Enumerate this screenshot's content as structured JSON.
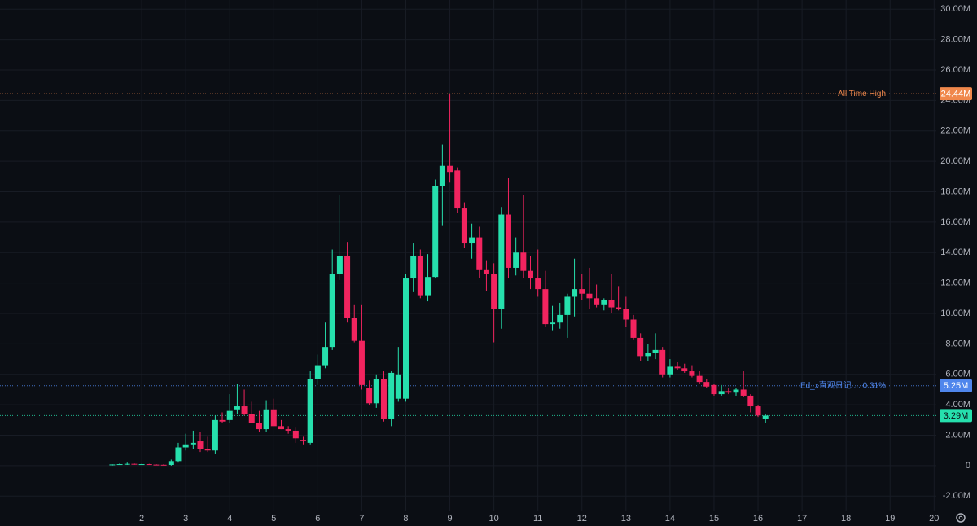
{
  "chart_data": {
    "type": "candlestick",
    "up_color": "#26e0ad",
    "down_color": "#f2245f",
    "x": [
      1.33,
      1.5,
      1.67,
      1.83,
      2,
      2.17,
      2.33,
      2.5,
      2.67,
      2.83,
      3,
      3.17,
      3.33,
      3.5,
      3.67,
      3.83,
      4,
      4.17,
      4.33,
      4.5,
      4.67,
      4.83,
      5,
      5.17,
      5.33,
      5.5,
      5.67,
      5.83,
      6,
      6.17,
      6.33,
      6.5,
      6.67,
      6.83,
      7,
      7.17,
      7.33,
      7.5,
      7.67,
      7.83,
      8,
      8.17,
      8.33,
      8.5,
      8.67,
      8.83,
      9,
      9.17,
      9.33,
      9.5,
      9.67,
      9.83,
      10,
      10.17,
      10.33,
      10.5,
      10.67,
      10.83,
      11,
      11.17,
      11.33,
      11.5,
      11.67,
      11.83,
      12,
      12.17,
      12.33,
      12.5,
      12.67,
      12.83,
      13,
      13.17,
      13.33,
      13.5,
      13.67,
      13.83,
      14,
      14.17,
      14.33,
      14.5,
      14.67,
      14.83,
      15,
      15.17,
      15.33,
      15.5,
      15.67,
      15.83,
      16,
      16.17
    ],
    "open": [
      0.05,
      0.08,
      0.1,
      0.12,
      0.08,
      0.1,
      0.07,
      0.06,
      0.05,
      0.3,
      1.2,
      1.4,
      1.6,
      1.1,
      1,
      3,
      3,
      3.7,
      3.9,
      3.4,
      2.8,
      2.4,
      3.7,
      2.6,
      2.4,
      2.3,
      1.7,
      1.5,
      5.7,
      6.6,
      7.8,
      12.6,
      13.8,
      9.7,
      8.2,
      5.1,
      4.1,
      5.7,
      3.1,
      4.4,
      4.4,
      12.3,
      13.8,
      11.2,
      12.4,
      18.4,
      19.7,
      19.4,
      16.9,
      14.6,
      15,
      12.9,
      12.6,
      10.3,
      16.5,
      13,
      14,
      12.8,
      12.3,
      11.6,
      9.3,
      9.4,
      9.9,
      11.1,
      11.6,
      11.3,
      11,
      10.6,
      10.9,
      10.4,
      10.3,
      9.6,
      8.4,
      7.2,
      7.4,
      7.6,
      6,
      6.5,
      6.4,
      6.2,
      5.9,
      5.5,
      5.3,
      4.7,
      4.9,
      4.8,
      5,
      4.6,
      3.9,
      3.1
    ],
    "high": [
      0.1,
      0.15,
      0.2,
      0.15,
      0.12,
      0.12,
      0.1,
      0.1,
      0.4,
      1.5,
      2.1,
      2.3,
      2.2,
      1.9,
      3.3,
      3.5,
      4.7,
      5.4,
      5,
      4.2,
      3.6,
      4.3,
      4.4,
      3,
      2.6,
      2.5,
      1.9,
      6.2,
      7.3,
      9.4,
      14.2,
      17.8,
      14.7,
      10.6,
      10.6,
      5.6,
      6,
      6.2,
      6.2,
      7.8,
      12.6,
      14.6,
      14.2,
      13.9,
      18.8,
      21.1,
      24.44,
      19.6,
      17.3,
      15.9,
      15.7,
      13.5,
      13.3,
      17,
      18.9,
      15,
      17.8,
      13.8,
      14.2,
      12.8,
      10.5,
      10.7,
      11.3,
      13.6,
      12.6,
      13,
      11.9,
      11,
      12.6,
      11.8,
      11.1,
      9.9,
      8.7,
      8,
      8.7,
      7.8,
      7,
      6.8,
      6.7,
      6.6,
      6.2,
      5.7,
      5.4,
      5.3,
      5.1,
      5.1,
      6.2,
      4.7,
      4,
      3.4
    ],
    "low": [
      0,
      0.05,
      0.05,
      0.05,
      0.05,
      0.05,
      0.03,
      0.03,
      0,
      0.2,
      1,
      1.1,
      0.9,
      0.9,
      0.8,
      2.8,
      2.8,
      3.4,
      3.3,
      2.8,
      2.2,
      2.2,
      2.6,
      2.4,
      2.1,
      1.5,
      1.4,
      1.4,
      5.3,
      6.4,
      7.6,
      12.2,
      9.4,
      8.1,
      5,
      4,
      3.8,
      2.9,
      2.6,
      4.2,
      4.2,
      11.4,
      11,
      10.8,
      12.3,
      15.8,
      18.6,
      16.6,
      14.3,
      13.6,
      12.3,
      11.5,
      8.1,
      9,
      12.3,
      12.5,
      12.3,
      11.6,
      11.1,
      9.1,
      8.9,
      9,
      8.4,
      9.8,
      10.9,
      10.3,
      10.4,
      10.2,
      10,
      10.2,
      9.1,
      8.3,
      6.9,
      6.9,
      7,
      5.8,
      5.8,
      6.3,
      6.1,
      5.8,
      5.4,
      5.1,
      4.6,
      4.6,
      4.7,
      4.6,
      4.5,
      3.5,
      3.2,
      2.8
    ],
    "close": [
      0.08,
      0.1,
      0.12,
      0.08,
      0.1,
      0.07,
      0.06,
      0.05,
      0.3,
      1.2,
      1.4,
      1.5,
      1.1,
      1,
      3,
      2.9,
      3.6,
      3.9,
      3.4,
      2.8,
      2.4,
      3.7,
      2.6,
      2.4,
      2.3,
      1.8,
      1.6,
      5.7,
      6.6,
      7.8,
      12.6,
      13.8,
      9.7,
      8.2,
      5.3,
      4.1,
      5.7,
      3.1,
      6.1,
      6,
      12.3,
      13.8,
      11.2,
      12.4,
      18.4,
      19.7,
      19.3,
      16.9,
      14.6,
      15,
      12.9,
      12.6,
      10.3,
      16.5,
      13,
      14,
      12.8,
      12.3,
      11.6,
      9.3,
      9.4,
      9.9,
      11.1,
      11.6,
      11.3,
      11,
      10.6,
      10.9,
      10.4,
      10.3,
      9.6,
      8.4,
      7.2,
      7.4,
      7.6,
      6,
      6.5,
      6.4,
      6.2,
      5.9,
      5.5,
      5.2,
      4.7,
      4.9,
      4.8,
      5,
      4.6,
      3.9,
      3.3,
      3.29
    ],
    "xlim": [
      -1.22,
      20.05
    ],
    "xticks": [
      2,
      3,
      4,
      5,
      6,
      7,
      8,
      9,
      10,
      11,
      12,
      13,
      14,
      15,
      16,
      17,
      18,
      19,
      20
    ],
    "ylim": [
      -3,
      30.6
    ],
    "yticks": [
      {
        "value": -2,
        "label": "-2.00M"
      },
      0,
      {
        "value": 2,
        "label": "2.00M"
      },
      {
        "value": 4,
        "label": "4.00M"
      },
      {
        "value": 6,
        "label": "6.00M"
      },
      {
        "value": 8,
        "label": "8.00M"
      },
      {
        "value": 10,
        "label": "10.00M"
      },
      {
        "value": 12,
        "label": "12.00M"
      },
      {
        "value": 14,
        "label": "14.00M"
      },
      {
        "value": 16,
        "label": "16.00M"
      },
      {
        "value": 18,
        "label": "18.00M"
      },
      {
        "value": 20,
        "label": "20.00M"
      },
      {
        "value": 22,
        "label": "22.00M"
      },
      {
        "value": 24,
        "label": "24.00M"
      },
      {
        "value": 26,
        "label": "26.00M"
      },
      {
        "value": 28,
        "label": "28.00M"
      },
      {
        "value": 30,
        "label": "30.00M"
      }
    ],
    "grid": true,
    "lines": [
      {
        "value": 24.44,
        "label": "24.44M",
        "text": "All Time High",
        "color": "#f0884c"
      },
      {
        "value": 5.25,
        "label": "5.25M",
        "text": "Ed_x直观日记 ... 0.31%",
        "color": "#4f86ec"
      },
      {
        "value": 3.29,
        "label": "3.29M",
        "color": "#26e0ad"
      }
    ]
  }
}
